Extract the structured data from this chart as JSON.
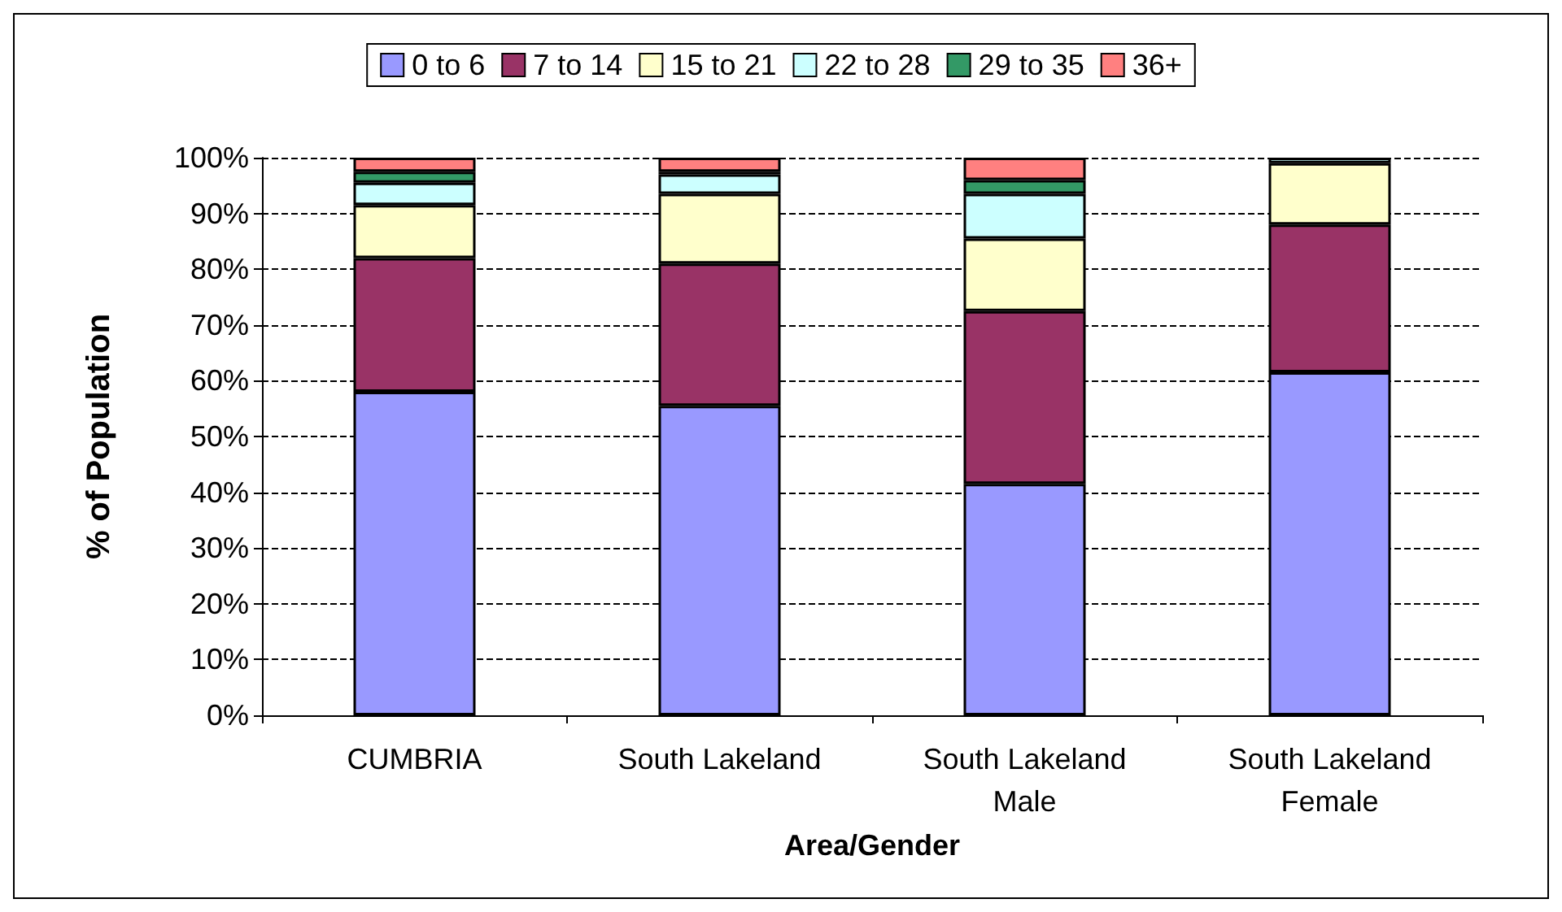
{
  "chart_data": {
    "type": "bar",
    "stacked": true,
    "xlabel": "Area/Gender",
    "ylabel": "% of Population",
    "categories": [
      "CUMBRIA",
      "South Lakeland",
      "South Lakeland\nMale",
      "South Lakeland\nFemale"
    ],
    "series": [
      {
        "name": "0 to 6",
        "color": "#9999ff",
        "values": [
          58,
          55.5,
          41.5,
          61.5
        ]
      },
      {
        "name": "7 to 14",
        "color": "#993366",
        "values": [
          24,
          25.5,
          31,
          26.5
        ]
      },
      {
        "name": "15 to 21",
        "color": "#ffffcc",
        "values": [
          9.5,
          12.5,
          13,
          11
        ]
      },
      {
        "name": "22 to 28",
        "color": "#ccffff",
        "values": [
          4,
          3.5,
          8,
          1
        ]
      },
      {
        "name": "29 to 35",
        "color": "#339966",
        "values": [
          2,
          0.5,
          2.5,
          null
        ]
      },
      {
        "name": "36+",
        "color": "#ff8080",
        "values": [
          2.5,
          2.5,
          4,
          null
        ]
      }
    ],
    "ylim": [
      0,
      100
    ],
    "yticks": [
      {
        "value": 0,
        "label": "0%"
      },
      {
        "value": 10,
        "label": "10%"
      },
      {
        "value": 20,
        "label": "20%"
      },
      {
        "value": 30,
        "label": "30%"
      },
      {
        "value": 40,
        "label": "40%"
      },
      {
        "value": 50,
        "label": "50%"
      },
      {
        "value": 60,
        "label": "60%"
      },
      {
        "value": 70,
        "label": "70%"
      },
      {
        "value": 80,
        "label": "80%"
      },
      {
        "value": 90,
        "label": "90%"
      },
      {
        "value": 100,
        "label": "100%"
      }
    ],
    "grid": "y",
    "legend": "top"
  }
}
